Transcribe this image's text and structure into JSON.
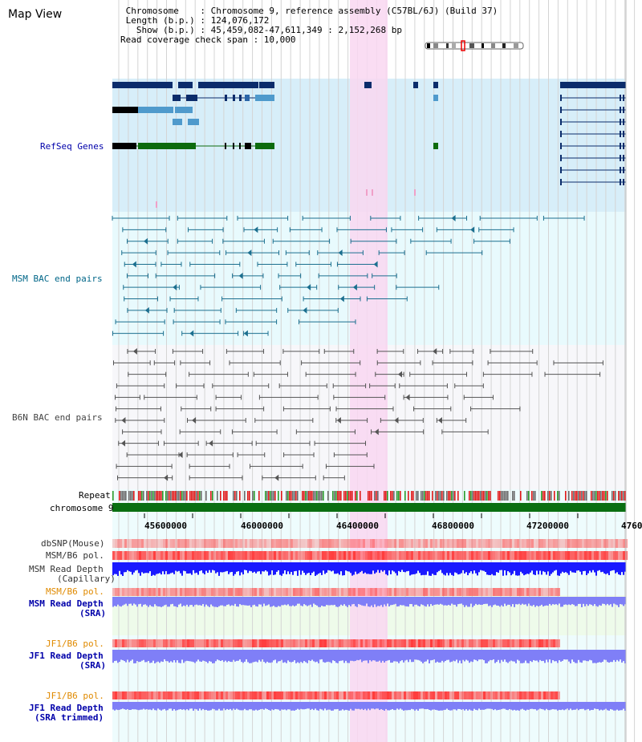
{
  "app": {
    "title": "Map View"
  },
  "header": {
    "lines": [
      " Chromosome    : Chromosome 9, reference assembly (C57BL/6J) (Build 37)",
      " Length (b.p.) : 124,076,172",
      "   Show (b.p.) : 45,459,082-47,611,349 : 2,152,268 bp",
      "Read coverage check span : 10,000"
    ]
  },
  "tracks": {
    "refseq": {
      "label": "RefSeq Genes",
      "color": "#0000aa"
    },
    "msm_bac": {
      "label": "MSM BAC end pairs",
      "color": "#006688"
    },
    "b6n_bac": {
      "label": "B6N BAC end pairs",
      "color": "#444444"
    },
    "repeat": {
      "label": "Repeat"
    },
    "chromosome": {
      "label": "chromosome 9"
    },
    "dbsnp": {
      "label": "dbSNP(Mouse)"
    },
    "msm_b6_pol_1": {
      "label": "MSM/B6 pol."
    },
    "msm_read_depth_cap": {
      "label_1": "MSM Read Depth",
      "label_2": "(Capillary)"
    },
    "msm_b6_pol_2": {
      "label": "MSM/B6 pol.",
      "color": "#e08a00"
    },
    "msm_read_depth_sra": {
      "label_1": "MSM Read Depth",
      "label_2": "(SRA)",
      "color": "#0000aa"
    },
    "jf1_b6_pol_1": {
      "label": "JF1/B6 pol.",
      "color": "#e08a00"
    },
    "jf1_read_depth_sra": {
      "label_1": "JF1 Read Depth",
      "label_2": "(SRA)",
      "color": "#0000aa"
    },
    "jf1_b6_pol_2": {
      "label": "JF1/B6 pol.",
      "color": "#e08a00"
    },
    "jf1_read_depth_trim": {
      "label_1": "JF1 Read Depth",
      "label_2": "(SRA trimmed)",
      "color": "#0000aa"
    }
  },
  "axis": {
    "ticks": [
      "45600000",
      "46000000",
      "46400000",
      "46800000",
      "47200000",
      "4760"
    ]
  },
  "colors": {
    "refseq_bg": "#d7eef9",
    "bac_bg": "#e8fafd",
    "b6n_bg": "#f7f7fa",
    "highlight": "#f9d7f1",
    "gene_dark": "#0b2c6b",
    "gene_mid": "#2b66a8",
    "gene_light": "#4f9acc",
    "gene_green": "#0d6b0d",
    "chromosome_bar": "#0a6f12",
    "snp_red": "#ff3b3b",
    "depth_blue": "#1a1aff",
    "depth_light_blue": "#7f7ff7"
  }
}
